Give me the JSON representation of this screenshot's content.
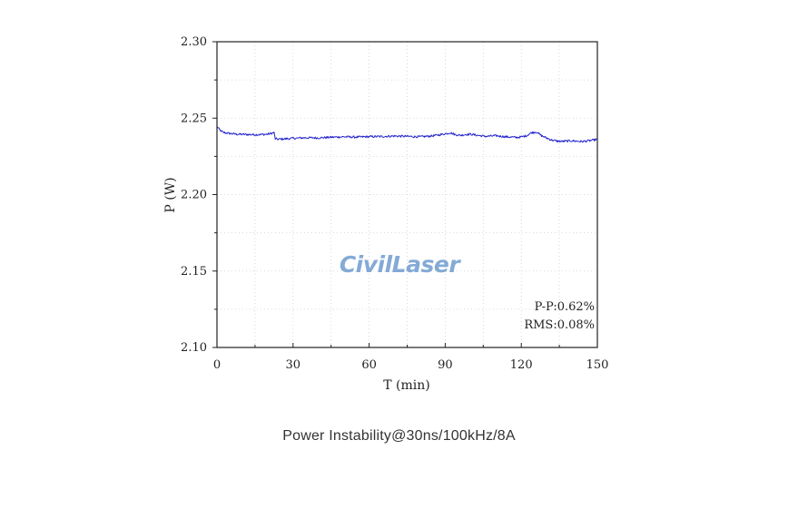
{
  "chart_data": {
    "type": "line",
    "xlabel": "T (min)",
    "ylabel": "P (W)",
    "xlim": [
      0,
      150
    ],
    "ylim": [
      2.1,
      2.3
    ],
    "x_ticks": [
      0,
      30,
      60,
      90,
      120,
      150
    ],
    "x_tick_labels": [
      "0",
      "30",
      "60",
      "90",
      "120",
      "150"
    ],
    "y_ticks": [
      2.1,
      2.15,
      2.2,
      2.25,
      2.3
    ],
    "y_tick_labels": [
      "2.10",
      "2.15",
      "2.20",
      "2.25",
      "2.30"
    ],
    "grid": true,
    "line_color": "#2222cc",
    "annotations": [
      "P-P:0.62%",
      "RMS:0.08%"
    ],
    "series": [
      {
        "x": [
          0,
          1,
          2,
          3,
          5,
          8,
          12,
          16,
          20,
          22.5,
          23,
          24,
          26,
          30,
          35,
          40,
          45,
          50,
          55,
          60,
          65,
          70,
          75,
          80,
          85,
          88,
          90,
          92,
          94,
          96,
          98,
          100,
          103,
          106,
          110,
          114,
          118,
          120,
          122,
          124,
          126,
          128,
          130,
          132,
          134,
          136,
          140,
          144,
          148,
          150
        ],
        "y": [
          2.2445,
          2.2425,
          2.241,
          2.2405,
          2.24,
          2.2395,
          2.2393,
          2.2392,
          2.2395,
          2.2405,
          2.2365,
          2.2362,
          2.2364,
          2.2368,
          2.2372,
          2.2371,
          2.2375,
          2.2378,
          2.2376,
          2.2379,
          2.238,
          2.2383,
          2.2381,
          2.2378,
          2.2384,
          2.2392,
          2.2398,
          2.2405,
          2.2392,
          2.2388,
          2.2393,
          2.2395,
          2.2387,
          2.2381,
          2.2385,
          2.2378,
          2.2374,
          2.2377,
          2.2385,
          2.2405,
          2.241,
          2.2385,
          2.237,
          2.2357,
          2.235,
          2.2348,
          2.2352,
          2.2347,
          2.2355,
          2.2362
        ]
      }
    ]
  },
  "watermark": {
    "text": "CivilLaser",
    "color": "#6f9ccf"
  },
  "caption": "Power Instability@30ns/100kHz/8A"
}
